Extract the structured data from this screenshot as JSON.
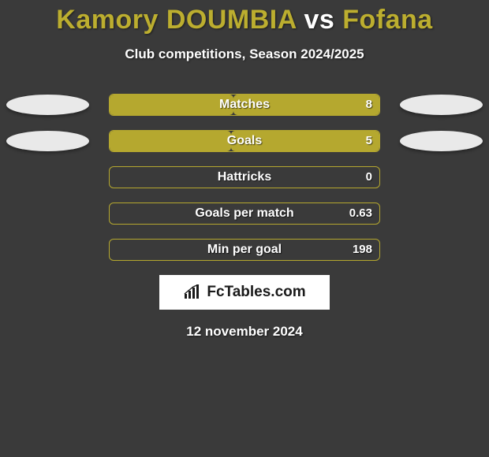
{
  "title": {
    "player1": "Kamory DOUMBIA",
    "vs": "vs",
    "player2": "Fofana",
    "color1": "#bcae2f",
    "color_vs": "#ffffff",
    "color2": "#bcae2f"
  },
  "subtitle": "Club competitions, Season 2024/2025",
  "colors": {
    "player1_fill": "#b5a82f",
    "player2_fill": "#b5a82f",
    "ellipse1": "#e9e9e9",
    "ellipse2": "#e9e9e9",
    "track_border": "#b5a82f",
    "background": "#3a3a3a"
  },
  "stats": [
    {
      "label": "Matches",
      "left_val": "",
      "right_val": "8",
      "left_pct": 46,
      "right_pct": 54,
      "show_ellipses": true
    },
    {
      "label": "Goals",
      "left_val": "",
      "right_val": "5",
      "left_pct": 45,
      "right_pct": 55,
      "show_ellipses": true
    },
    {
      "label": "Hattricks",
      "left_val": "",
      "right_val": "0",
      "left_pct": 0,
      "right_pct": 0,
      "show_ellipses": false
    },
    {
      "label": "Goals per match",
      "left_val": "",
      "right_val": "0.63",
      "left_pct": 0,
      "right_pct": 0,
      "show_ellipses": false
    },
    {
      "label": "Min per goal",
      "left_val": "",
      "right_val": "198",
      "left_pct": 0,
      "right_pct": 0,
      "show_ellipses": false
    }
  ],
  "badge": {
    "icon_name": "bar-chart-icon",
    "text": "FcTables.com"
  },
  "date": "12 november 2024"
}
